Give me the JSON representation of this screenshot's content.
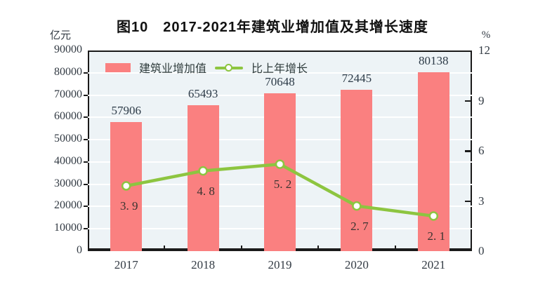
{
  "colors": {
    "bar": "#fa8080",
    "line": "#8dc540",
    "marker_fill": "#ffffff",
    "plot_bg": "#edf3f6",
    "grid": "#ffffff",
    "axis": "#1a1a1a",
    "title_text": "#111111",
    "label_text": "#333b44"
  },
  "chart_data": {
    "type": "bar",
    "title": "图10　2017-2021年建筑业增加值及其增长速度",
    "categories": [
      "2017",
      "2018",
      "2019",
      "2020",
      "2021"
    ],
    "series": [
      {
        "name": "建筑业增加值",
        "type": "bar",
        "axis": "left",
        "values": [
          57906,
          65493,
          70648,
          72445,
          80138
        ],
        "labels": [
          "57906",
          "65493",
          "70648",
          "72445",
          "80138"
        ]
      },
      {
        "name": "比上年增长",
        "type": "line",
        "axis": "right",
        "values": [
          3.9,
          4.8,
          5.2,
          2.7,
          2.1
        ],
        "labels": [
          "3. 9",
          "4. 8",
          "5. 2",
          "2. 7",
          "2. 1"
        ]
      }
    ],
    "left_axis": {
      "unit": "亿元",
      "min": 0,
      "max": 90000,
      "step": 10000
    },
    "right_axis": {
      "unit": "%",
      "min": 0,
      "max": 12,
      "step": 3
    },
    "grid": true,
    "legend_position": "top-inside"
  }
}
